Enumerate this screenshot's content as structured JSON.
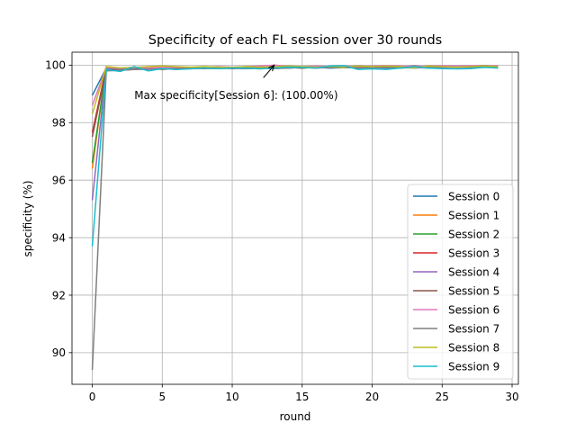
{
  "chart_data": {
    "type": "line",
    "title": "Specificity of each FL session over 30 rounds",
    "xlabel": "round",
    "ylabel": "specificity (%)",
    "xlim": [
      -1.45,
      30.45
    ],
    "ylim": [
      88.9,
      100.45
    ],
    "xticks": [
      0,
      5,
      10,
      15,
      20,
      25,
      30
    ],
    "yticks": [
      90,
      92,
      94,
      96,
      98,
      100
    ],
    "grid": true,
    "legend_position": "lower-right",
    "x": [
      0,
      1,
      2,
      3,
      4,
      5,
      6,
      7,
      8,
      9,
      10,
      11,
      12,
      13,
      14,
      15,
      16,
      17,
      18,
      19,
      20,
      21,
      22,
      23,
      24,
      25,
      26,
      27,
      28,
      29
    ],
    "series": [
      {
        "name": "Session 0",
        "color": "#1f77b4",
        "values": [
          98.95,
          99.9,
          99.85,
          99.88,
          99.87,
          99.9,
          99.88,
          99.9,
          99.92,
          99.9,
          99.92,
          99.9,
          99.9,
          99.92,
          99.9,
          99.93,
          99.92,
          99.9,
          99.92,
          99.9,
          99.92,
          99.9,
          99.92,
          99.9,
          99.92,
          99.93,
          99.92,
          99.93,
          99.94,
          99.95
        ]
      },
      {
        "name": "Session 1",
        "color": "#ff7f0e",
        "values": [
          96.4,
          99.95,
          99.9,
          99.92,
          99.9,
          99.93,
          99.9,
          99.92,
          99.93,
          99.9,
          99.92,
          99.93,
          99.9,
          99.92,
          99.93,
          99.9,
          99.92,
          99.93,
          99.95,
          99.93,
          99.92,
          99.95,
          99.93,
          99.95,
          99.92,
          99.95,
          99.93,
          99.95,
          99.95,
          99.96
        ]
      },
      {
        "name": "Session 2",
        "color": "#2ca02c",
        "values": [
          96.6,
          99.9,
          99.88,
          99.9,
          99.88,
          99.9,
          99.88,
          99.9,
          99.9,
          99.92,
          99.9,
          99.9,
          99.92,
          99.9,
          99.92,
          99.9,
          99.92,
          99.93,
          99.92,
          99.9,
          99.92,
          99.93,
          99.9,
          99.92,
          99.93,
          99.92,
          99.93,
          99.92,
          99.93,
          99.95
        ]
      },
      {
        "name": "Session 3",
        "color": "#d62728",
        "values": [
          97.65,
          99.92,
          99.88,
          99.9,
          99.9,
          99.88,
          99.9,
          99.92,
          99.9,
          99.92,
          99.9,
          99.92,
          99.93,
          99.9,
          99.92,
          99.93,
          99.95,
          99.92,
          99.93,
          99.92,
          99.95,
          99.93,
          99.95,
          99.93,
          99.95,
          99.93,
          99.95,
          99.96,
          99.95,
          99.97
        ]
      },
      {
        "name": "Session 4",
        "color": "#9467bd",
        "values": [
          95.3,
          99.9,
          99.85,
          99.88,
          99.9,
          99.88,
          99.9,
          99.88,
          99.9,
          99.92,
          99.9,
          99.88,
          99.9,
          99.92,
          99.9,
          99.92,
          99.9,
          99.93,
          99.92,
          99.9,
          99.92,
          99.9,
          99.93,
          99.92,
          99.9,
          99.93,
          99.92,
          99.93,
          99.95,
          99.93
        ]
      },
      {
        "name": "Session 5",
        "color": "#8c564b",
        "values": [
          97.5,
          99.85,
          99.82,
          99.85,
          99.88,
          99.85,
          99.88,
          99.9,
          99.88,
          99.9,
          99.88,
          99.9,
          99.92,
          99.9,
          99.92,
          99.9,
          99.95,
          99.92,
          99.95,
          99.97,
          99.95,
          99.93,
          99.95,
          99.97,
          99.95,
          99.97,
          99.95,
          99.97,
          99.98,
          99.97
        ]
      },
      {
        "name": "Session 6",
        "color": "#e377c2",
        "values": [
          98.6,
          99.92,
          99.9,
          99.92,
          99.9,
          99.92,
          99.93,
          99.92,
          99.93,
          99.95,
          99.93,
          99.95,
          99.97,
          100.0,
          99.97,
          99.95,
          99.97,
          99.95,
          99.97,
          99.95,
          99.97,
          99.98,
          99.97,
          99.95,
          99.97,
          99.98,
          99.97,
          99.98,
          99.97,
          99.98
        ]
      },
      {
        "name": "Session 7",
        "color": "#7f7f7f",
        "values": [
          89.4,
          99.8,
          99.82,
          99.85,
          99.85,
          99.88,
          99.85,
          99.88,
          99.9,
          99.88,
          99.9,
          99.88,
          99.9,
          99.88,
          99.9,
          99.92,
          99.9,
          99.93,
          99.92,
          99.9,
          99.93,
          99.92,
          99.9,
          99.93,
          99.92,
          99.95,
          99.93,
          99.95,
          99.93,
          99.95
        ]
      },
      {
        "name": "Session 8",
        "color": "#bcbd22",
        "values": [
          98.3,
          99.95,
          99.9,
          99.92,
          99.95,
          99.97,
          99.95,
          99.93,
          99.95,
          99.93,
          99.92,
          99.95,
          99.93,
          99.95,
          99.97,
          99.95,
          99.93,
          99.95,
          99.93,
          99.97,
          99.95,
          99.97,
          99.95,
          99.9,
          99.97,
          99.95,
          99.93,
          99.95,
          99.97,
          99.95
        ]
      },
      {
        "name": "Session 9",
        "color": "#17becf",
        "values": [
          93.7,
          99.85,
          99.78,
          99.95,
          99.8,
          99.88,
          99.85,
          99.87,
          99.9,
          99.88,
          99.9,
          99.9,
          99.87,
          99.9,
          99.93,
          99.92,
          99.9,
          99.97,
          99.98,
          99.85,
          99.87,
          99.85,
          99.9,
          99.95,
          99.9,
          99.88,
          99.87,
          99.88,
          99.92,
          99.9
        ]
      }
    ],
    "annotation": {
      "text": "Max specificity[Session 6]: (100.00%)",
      "point": [
        13,
        100.0
      ],
      "text_anchor_data": [
        3,
        98.95
      ]
    }
  }
}
